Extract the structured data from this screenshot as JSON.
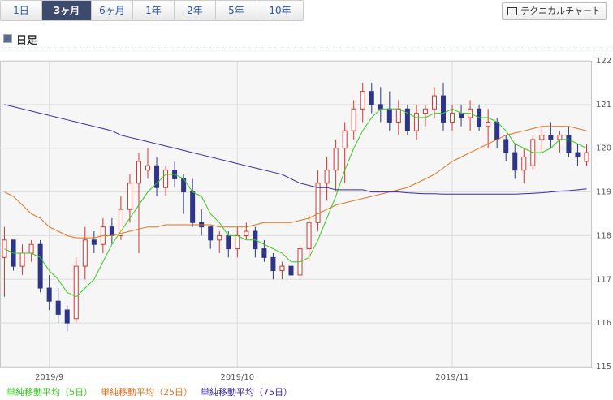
{
  "tabs": [
    "1日",
    "3ヶ月",
    "6ヶ月",
    "1年",
    "2年",
    "5年",
    "10年"
  ],
  "selected_tab": 1,
  "button": "テクニカルチャート",
  "heading": "日足",
  "chart_data": {
    "type": "candlestick",
    "categories": [
      null,
      null,
      null,
      null,
      null,
      "2019/9",
      null,
      null,
      null,
      null,
      null,
      null,
      null,
      null,
      null,
      null,
      null,
      null,
      null,
      null,
      null,
      null,
      null,
      null,
      null,
      null,
      "2019/10",
      null,
      null,
      null,
      null,
      null,
      null,
      null,
      null,
      null,
      null,
      null,
      null,
      null,
      null,
      null,
      null,
      null,
      null,
      null,
      null,
      null,
      null,
      null,
      "2019/11",
      null,
      null,
      null,
      null,
      null,
      null,
      null,
      null,
      null,
      null,
      null,
      null,
      null,
      null,
      null
    ],
    "open": [
      117.5,
      117.9,
      117.3,
      117.6,
      117.8,
      116.8,
      116.5,
      116.3,
      116.1,
      117.3,
      117.9,
      117.8,
      118.2,
      118.0,
      118.6,
      119.2,
      119.5,
      119.6,
      119.1,
      119.5,
      119.3,
      119.0,
      118.3,
      118.2,
      117.9,
      118.0,
      117.7,
      118.0,
      118.1,
      117.7,
      117.5,
      117.2,
      117.3,
      117.1,
      117.7,
      118.3,
      119.2,
      119.5,
      120.0,
      120.4,
      120.9,
      121.3,
      121.0,
      120.9,
      120.6,
      120.9,
      120.4,
      120.8,
      120.9,
      121.2,
      120.6,
      120.8,
      120.7,
      120.9,
      120.5,
      120.6,
      120.2,
      119.9,
      119.5,
      119.6,
      120.2,
      120.3,
      120.2,
      120.3,
      119.9,
      119.7
    ],
    "high": [
      118.2,
      117.9,
      117.8,
      117.9,
      117.9,
      117.1,
      116.8,
      116.4,
      117.5,
      118.2,
      118.1,
      118.4,
      118.4,
      118.9,
      119.4,
      119.9,
      120.0,
      119.8,
      119.6,
      119.7,
      119.4,
      119.3,
      118.6,
      118.2,
      118.1,
      118.1,
      118.2,
      118.3,
      118.2,
      117.9,
      117.6,
      117.4,
      117.5,
      117.8,
      118.5,
      119.5,
      119.8,
      120.2,
      120.6,
      121.1,
      121.5,
      121.5,
      121.4,
      121.3,
      121.1,
      121.0,
      121.0,
      121.0,
      121.4,
      121.5,
      121.0,
      121.0,
      121.1,
      121.0,
      120.9,
      120.7,
      120.3,
      120.1,
      120.0,
      120.3,
      120.5,
      120.6,
      120.4,
      120.5,
      120.1,
      120.1
    ],
    "low": [
      116.6,
      117.2,
      117.1,
      117.4,
      116.7,
      116.3,
      116.0,
      115.8,
      116.0,
      117.0,
      117.6,
      117.6,
      117.8,
      117.9,
      118.3,
      117.6,
      119.3,
      118.9,
      118.9,
      119.1,
      118.5,
      118.2,
      118.0,
      117.7,
      117.6,
      117.5,
      117.5,
      117.9,
      117.5,
      117.4,
      117.0,
      117.0,
      117.0,
      117.0,
      117.4,
      118.1,
      118.8,
      119.0,
      119.2,
      120.2,
      120.6,
      120.8,
      120.6,
      120.4,
      120.3,
      120.3,
      120.2,
      120.5,
      120.7,
      120.4,
      120.4,
      120.5,
      120.4,
      120.4,
      120.0,
      120.0,
      119.7,
      119.3,
      119.2,
      119.5,
      119.9,
      120.0,
      119.9,
      119.8,
      119.6,
      119.6
    ],
    "close": [
      117.9,
      117.3,
      117.6,
      117.8,
      116.8,
      116.5,
      116.2,
      116.0,
      117.3,
      117.9,
      117.8,
      118.2,
      118.0,
      118.6,
      119.2,
      119.7,
      119.6,
      119.1,
      119.5,
      119.3,
      119.0,
      118.3,
      118.2,
      117.9,
      118.0,
      117.7,
      118.0,
      118.1,
      117.7,
      117.5,
      117.2,
      117.3,
      117.1,
      117.7,
      118.3,
      119.2,
      119.5,
      120.0,
      120.4,
      120.9,
      121.3,
      121.0,
      120.9,
      120.6,
      120.9,
      120.4,
      120.8,
      120.9,
      121.2,
      120.6,
      120.8,
      120.7,
      120.9,
      120.5,
      120.6,
      120.2,
      119.9,
      119.5,
      119.8,
      120.2,
      120.3,
      120.2,
      120.3,
      119.9,
      119.8,
      119.9
    ],
    "up_color": "#d9322b",
    "down_color": "#2e3488",
    "series": [
      {
        "name": "単純移動平均（5日）",
        "color": "#33cc1a",
        "values": [
          117.7,
          117.6,
          117.6,
          117.6,
          117.5,
          117.2,
          117.0,
          116.7,
          116.6,
          116.8,
          117.0,
          117.4,
          117.8,
          118.1,
          118.4,
          118.7,
          119.0,
          119.2,
          119.4,
          119.4,
          119.3,
          119.0,
          118.9,
          118.5,
          118.3,
          118.0,
          118.0,
          117.9,
          117.9,
          117.8,
          117.7,
          117.6,
          117.4,
          117.4,
          117.5,
          117.9,
          118.4,
          118.9,
          119.5,
          120.0,
          120.4,
          120.7,
          120.9,
          120.9,
          120.9,
          120.8,
          120.7,
          120.7,
          120.8,
          120.8,
          120.9,
          120.8,
          120.8,
          120.7,
          120.7,
          120.6,
          120.4,
          120.1,
          120.0,
          119.9,
          119.9,
          120.0,
          120.2,
          120.2,
          120.1,
          120.0
        ]
      },
      {
        "name": "単純移動平均（25日）",
        "color": "#e0701a",
        "values": [
          119.0,
          118.9,
          118.7,
          118.5,
          118.4,
          118.2,
          118.1,
          118.0,
          117.95,
          117.95,
          117.95,
          118.0,
          118.0,
          118.05,
          118.1,
          118.15,
          118.2,
          118.2,
          118.25,
          118.25,
          118.25,
          118.25,
          118.25,
          118.25,
          118.2,
          118.2,
          118.2,
          118.2,
          118.25,
          118.3,
          118.3,
          118.3,
          118.3,
          118.35,
          118.4,
          118.5,
          118.6,
          118.7,
          118.75,
          118.8,
          118.85,
          118.9,
          118.95,
          119.0,
          119.05,
          119.1,
          119.2,
          119.3,
          119.4,
          119.55,
          119.7,
          119.8,
          119.9,
          120.0,
          120.1,
          120.2,
          120.3,
          120.35,
          120.4,
          120.45,
          120.5,
          120.5,
          120.5,
          120.5,
          120.45,
          120.4
        ]
      },
      {
        "name": "単純移動平均（75日）",
        "color": "#3a2aa8",
        "values": [
          121.0,
          120.95,
          120.9,
          120.85,
          120.8,
          120.75,
          120.7,
          120.65,
          120.6,
          120.55,
          120.5,
          120.45,
          120.4,
          120.3,
          120.25,
          120.2,
          120.15,
          120.1,
          120.05,
          120.0,
          119.95,
          119.9,
          119.85,
          119.8,
          119.75,
          119.7,
          119.65,
          119.6,
          119.55,
          119.5,
          119.45,
          119.4,
          119.3,
          119.2,
          119.15,
          119.1,
          119.1,
          119.05,
          119.05,
          119.05,
          119.05,
          119.0,
          119.0,
          119.0,
          119.0,
          118.98,
          118.97,
          118.96,
          118.96,
          118.95,
          118.95,
          118.95,
          118.95,
          118.95,
          118.95,
          118.95,
          118.95,
          118.95,
          118.96,
          118.97,
          118.98,
          119.0,
          119.02,
          119.03,
          119.05,
          119.07
        ]
      }
    ],
    "ylim": [
      115,
      122
    ],
    "yticks": [
      115,
      116,
      117,
      118,
      119,
      120,
      121,
      122
    ],
    "grid": true
  }
}
